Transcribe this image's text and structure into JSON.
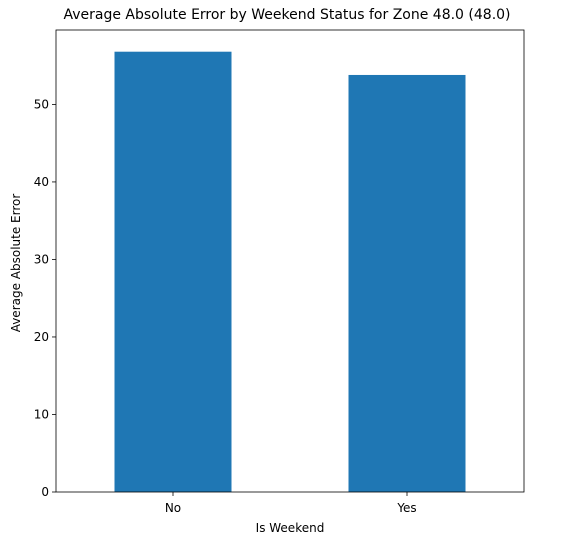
{
  "chart_data": {
    "type": "bar",
    "title": "Average Absolute Error by Weekend Status for Zone 48.0 (48.0)",
    "xlabel": "Is Weekend",
    "ylabel": "Average Absolute Error",
    "categories": [
      "No",
      "Yes"
    ],
    "values": [
      56.8,
      53.8
    ],
    "ylim": [
      0,
      59.6
    ],
    "yticks": [
      0,
      10,
      20,
      30,
      40,
      50
    ],
    "grid": false,
    "legend": "none",
    "bar_color": "#1f77b4"
  }
}
